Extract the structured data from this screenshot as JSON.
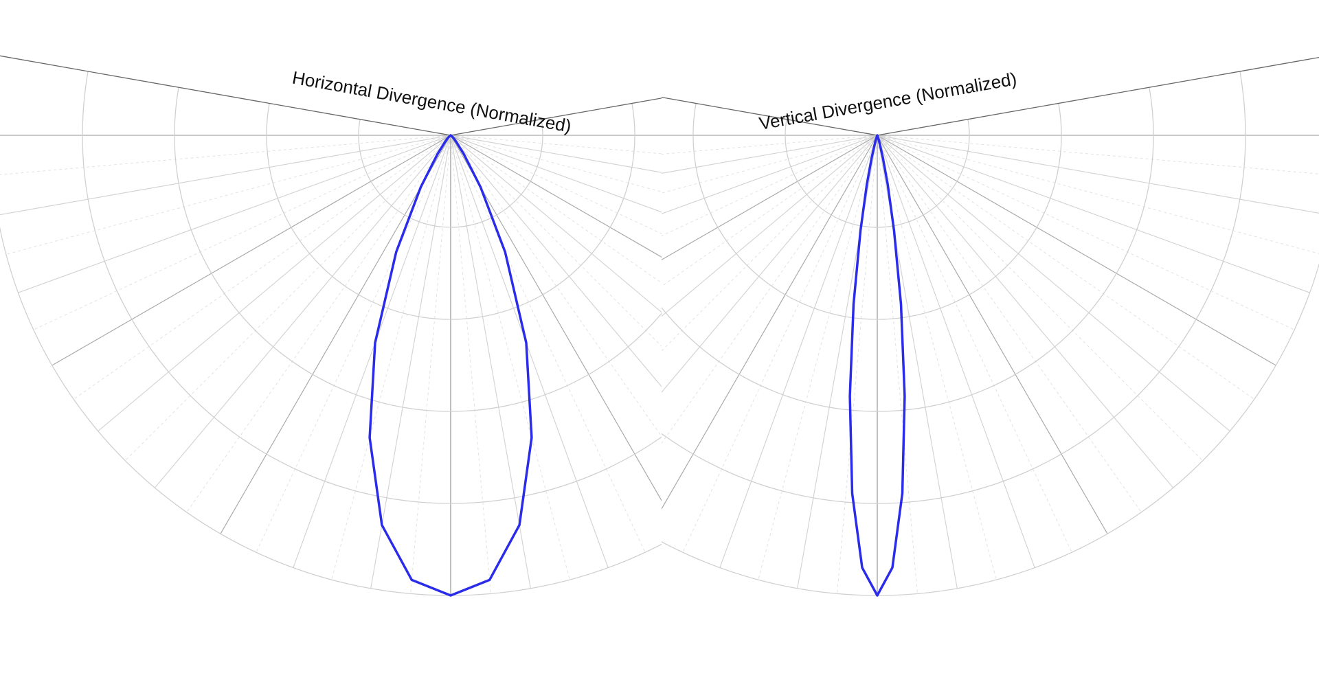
{
  "chart_data": [
    {
      "type": "polar",
      "title": "Horizontal Divergence (Normalized)",
      "theta": [
        -60,
        -55,
        -50,
        -45,
        -40,
        -35,
        -30,
        -25,
        -20,
        -15,
        -10,
        -5,
        0,
        5,
        10,
        15,
        20,
        25,
        30,
        35,
        40,
        45,
        50,
        55,
        60
      ],
      "values": [
        0,
        0,
        0.005,
        0.01,
        0.02,
        0.05,
        0.13,
        0.28,
        0.48,
        0.68,
        0.86,
        0.97,
        1.0,
        0.97,
        0.86,
        0.68,
        0.48,
        0.28,
        0.13,
        0.05,
        0.02,
        0.01,
        0.005,
        0,
        0
      ],
      "color": "#2b2bea",
      "rlim": [
        0,
        1
      ],
      "rticks": [
        0.2,
        0.4,
        0.6,
        0.8,
        1.0
      ],
      "thetalim": [
        -100,
        100
      ],
      "thetaticks": [
        -90,
        -80,
        -70,
        -60,
        -50,
        -40,
        -30,
        -20,
        -10,
        0,
        10,
        20,
        30,
        40,
        50,
        60,
        70,
        80,
        90
      ]
    },
    {
      "type": "polar",
      "title": "Vertical Divergence (Normalized)",
      "theta": [
        -20,
        -18,
        -16,
        -14,
        -12,
        -10,
        -8,
        -6,
        -4,
        -2,
        0,
        2,
        4,
        6,
        8,
        10,
        12,
        14,
        16,
        18,
        20
      ],
      "values": [
        0,
        0.01,
        0.02,
        0.05,
        0.11,
        0.21,
        0.37,
        0.57,
        0.78,
        0.94,
        1.0,
        0.94,
        0.78,
        0.57,
        0.37,
        0.21,
        0.11,
        0.05,
        0.02,
        0.01,
        0
      ],
      "color": "#2b2bea",
      "rlim": [
        0,
        1
      ],
      "rticks": [
        0.2,
        0.4,
        0.6,
        0.8,
        1.0
      ],
      "thetalim": [
        -100,
        100
      ],
      "thetaticks": [
        -90,
        -80,
        -70,
        -60,
        -50,
        -40,
        -30,
        -20,
        -10,
        0,
        10,
        20,
        30,
        40,
        50,
        60,
        70,
        80,
        90
      ]
    }
  ]
}
